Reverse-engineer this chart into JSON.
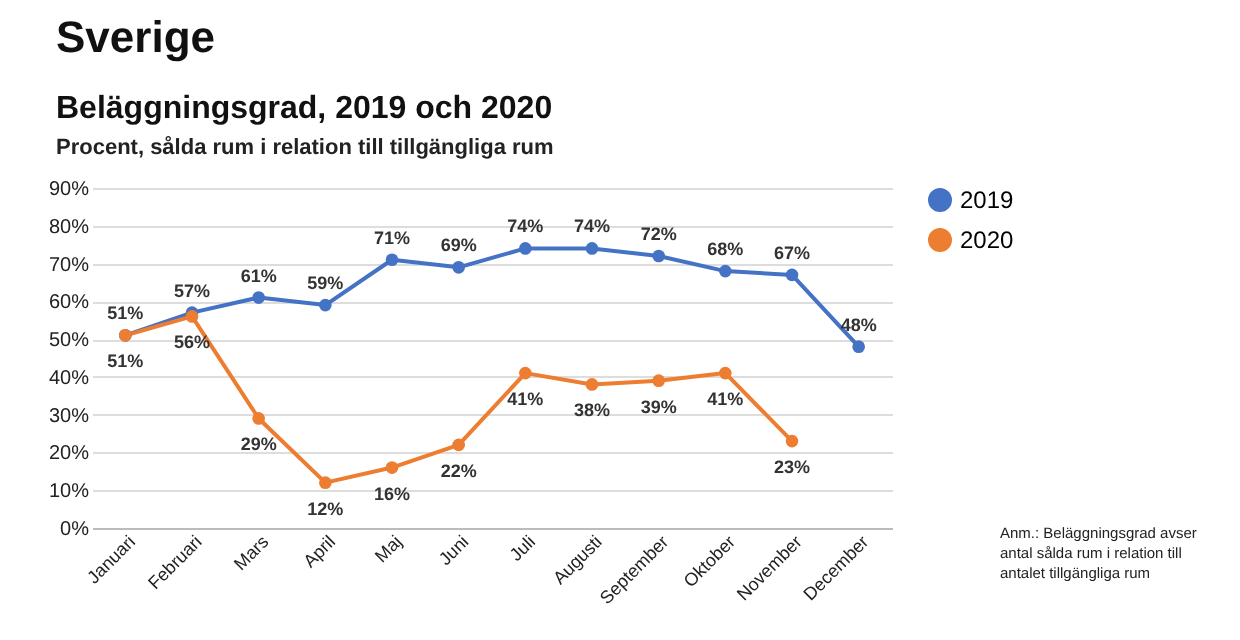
{
  "chart_data": {
    "type": "line",
    "title": "Sverige",
    "subtitle": "Beläggningsgrad, 2019 och 2020",
    "annotations": [
      "Procent, sålda rum i relation till tillgängliga rum",
      "Anm.: Beläggningsgrad avser antal sålda rum i relation till antalet tillgängliga rum"
    ],
    "categories": [
      "Januari",
      "Februari",
      "Mars",
      "April",
      "Maj",
      "Juni",
      "Juli",
      "Augusti",
      "September",
      "Oktober",
      "November",
      "December"
    ],
    "series": [
      {
        "name": "2019",
        "color": "#4472c4",
        "values": [
          51,
          57,
          61,
          59,
          71,
          69,
          74,
          74,
          72,
          68,
          67,
          48
        ],
        "value_labels": [
          "51%",
          "57%",
          "61%",
          "59%",
          "71%",
          "69%",
          "74%",
          "74%",
          "72%",
          "68%",
          "67%",
          "48%"
        ]
      },
      {
        "name": "2020",
        "color": "#ed7d31",
        "values": [
          51,
          56,
          29,
          12,
          16,
          22,
          41,
          38,
          39,
          41,
          23,
          null
        ],
        "value_labels": [
          "51%",
          "56%",
          "29%",
          "12%",
          "16%",
          "22%",
          "41%",
          "38%",
          "39%",
          "41%",
          "23%",
          null
        ]
      }
    ],
    "ylim": [
      0,
      90
    ],
    "yticks": [
      {
        "value": 0,
        "label": "0%"
      },
      {
        "value": 10,
        "label": "10%"
      },
      {
        "value": 20,
        "label": "20%"
      },
      {
        "value": 30,
        "label": "30%"
      },
      {
        "value": 40,
        "label": "40%"
      },
      {
        "value": 50,
        "label": "50%"
      },
      {
        "value": 60,
        "label": "60%"
      },
      {
        "value": 70,
        "label": "70%"
      },
      {
        "value": 80,
        "label": "80%"
      },
      {
        "value": 90,
        "label": "90%"
      }
    ],
    "grid": "y",
    "legend": "right",
    "marker": "circle"
  }
}
